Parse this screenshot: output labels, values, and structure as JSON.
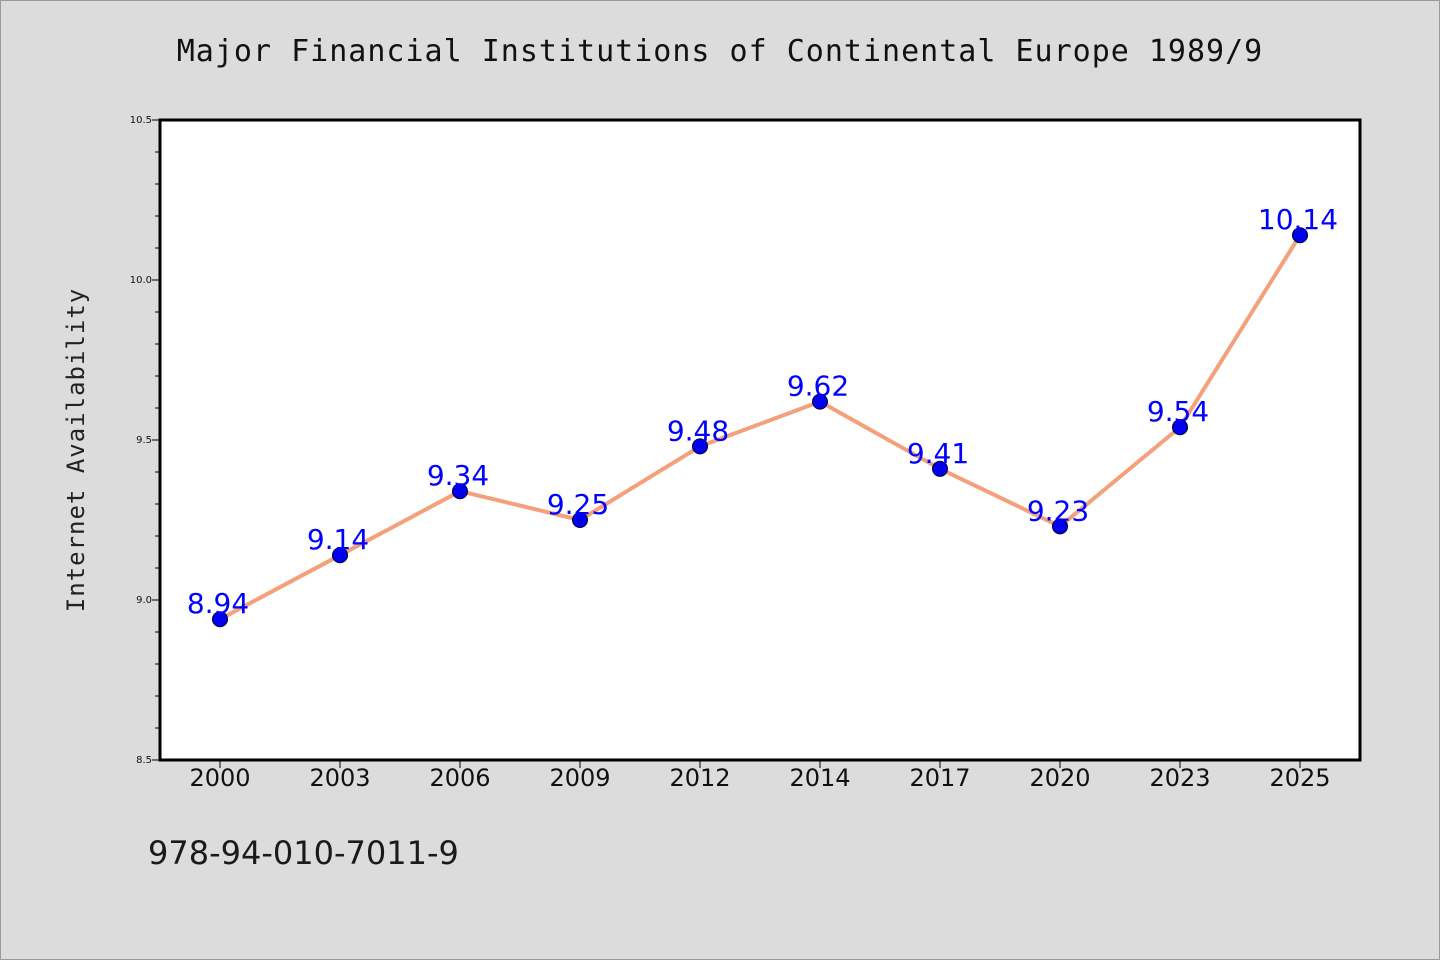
{
  "chart_data": {
    "type": "line",
    "title": "Major Financial Institutions of Continental Europe 1989/9",
    "xlabel": "",
    "ylabel": "Internet Availability",
    "categories": [
      "2000",
      "2003",
      "2006",
      "2009",
      "2012",
      "2014",
      "2017",
      "2020",
      "2023",
      "2025"
    ],
    "series": [
      {
        "values": [
          8.94,
          9.14,
          9.34,
          9.25,
          9.48,
          9.62,
          9.41,
          9.23,
          9.54,
          10.14
        ],
        "data_labels": [
          "8.94",
          "9.14",
          "9.34",
          "9.25",
          "9.48",
          "9.62",
          "9.41",
          "9.23",
          "9.54",
          "10.14"
        ],
        "line_color": "#f4a07a",
        "marker_color": "#0000ee",
        "label_color": "#0000ff"
      }
    ],
    "ylim": [
      8.5,
      10.5
    ],
    "y_ticks": [
      "8.5",
      "9.0",
      "9.5",
      "10.0",
      "10.5"
    ],
    "grid": false,
    "legend": "none"
  },
  "footer": {
    "code": "978-94-010-7011-9"
  },
  "colors": {
    "background": "#dcdcdc",
    "plot_background": "#ffffff",
    "axis": "#000000"
  }
}
